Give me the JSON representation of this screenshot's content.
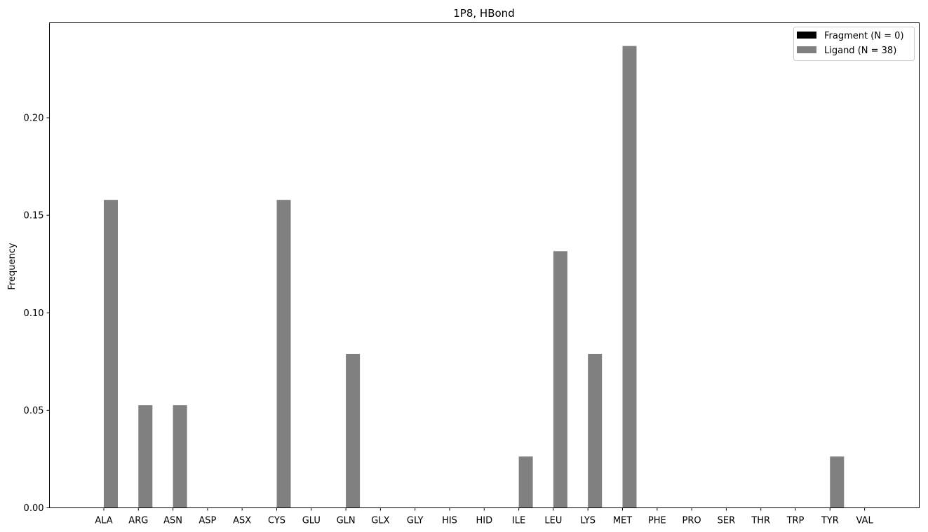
{
  "chart_data": {
    "type": "bar",
    "title": "1P8, HBond",
    "xlabel": "",
    "ylabel": "Frequency",
    "ylim": [
      0,
      0.2487
    ],
    "yticks": [
      0.0,
      0.05,
      0.1,
      0.15,
      0.2
    ],
    "ytick_labels": [
      "0.00",
      "0.05",
      "0.10",
      "0.15",
      "0.20"
    ],
    "grid": false,
    "legend_position": "top-right",
    "categories": [
      "ALA",
      "ARG",
      "ASN",
      "ASP",
      "ASX",
      "CYS",
      "GLU",
      "GLN",
      "GLX",
      "GLY",
      "HIS",
      "HID",
      "ILE",
      "LEU",
      "LYS",
      "MET",
      "PHE",
      "PRO",
      "SER",
      "THR",
      "TRP",
      "TYR",
      "VAL"
    ],
    "series": [
      {
        "name": "Fragment (N = 0)",
        "color": "#000000",
        "values": [
          0,
          0,
          0,
          0,
          0,
          0,
          0,
          0,
          0,
          0,
          0,
          0,
          0,
          0,
          0,
          0,
          0,
          0,
          0,
          0,
          0,
          0,
          0
        ]
      },
      {
        "name": "Ligand (N = 38)",
        "color": "#808080",
        "values": [
          0.1579,
          0.0526,
          0.0526,
          0,
          0,
          0.1579,
          0,
          0.0789,
          0,
          0,
          0,
          0,
          0.0263,
          0.1316,
          0.0789,
          0.2368,
          0,
          0,
          0,
          0,
          0,
          0.0263,
          0
        ]
      }
    ]
  }
}
